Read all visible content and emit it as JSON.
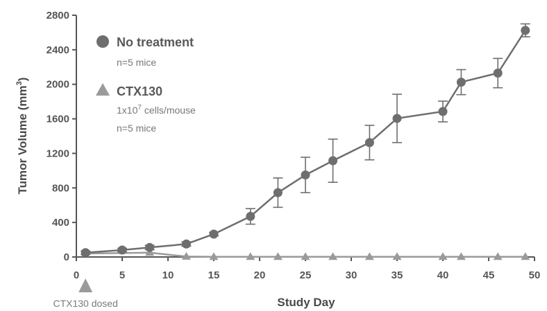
{
  "chart_data": {
    "type": "line",
    "xlabel": "Study Day",
    "ylabel": "Tumor Volume (mm",
    "ylabel_sup": "3",
    "ylabel_close": ")",
    "xlim": [
      0,
      50
    ],
    "ylim": [
      0,
      2800
    ],
    "xticks": [
      "0",
      "5",
      "10",
      "15",
      "20",
      "25",
      "30",
      "35",
      "40",
      "45",
      "50"
    ],
    "yticks": [
      "0",
      "400",
      "800",
      "1200",
      "1600",
      "2000",
      "2400",
      "2800"
    ],
    "grid": false,
    "legend_position": "top-left",
    "series": [
      {
        "name": "No treatment",
        "subtitle_lines": [
          "n=5 mice"
        ],
        "marker": "circle",
        "color": "#6e6e6e",
        "points": [
          {
            "x": 1,
            "y": 50,
            "err": 20
          },
          {
            "x": 5,
            "y": 80,
            "err": 20
          },
          {
            "x": 8,
            "y": 110,
            "err": 25
          },
          {
            "x": 12,
            "y": 150,
            "err": 25
          },
          {
            "x": 15,
            "y": 265,
            "err": 20
          },
          {
            "x": 19,
            "y": 470,
            "err": 90
          },
          {
            "x": 22,
            "y": 745,
            "err": 170
          },
          {
            "x": 25,
            "y": 950,
            "err": 205
          },
          {
            "x": 28,
            "y": 1115,
            "err": 250
          },
          {
            "x": 32,
            "y": 1325,
            "err": 200
          },
          {
            "x": 35,
            "y": 1605,
            "err": 280
          },
          {
            "x": 40,
            "y": 1685,
            "err": 120
          },
          {
            "x": 42,
            "y": 2025,
            "err": 145
          },
          {
            "x": 46,
            "y": 2130,
            "err": 170
          },
          {
            "x": 49,
            "y": 2625,
            "err": 75
          }
        ]
      },
      {
        "name": "CTX130",
        "subtitle_lines": [
          "1x10",
          "cells/mouse",
          "n=5 mice"
        ],
        "subtitle_sup": "7",
        "marker": "triangle",
        "color": "#9a9a9a",
        "points": [
          {
            "x": 1,
            "y": 40
          },
          {
            "x": 8,
            "y": 50
          },
          {
            "x": 12,
            "y": 5
          },
          {
            "x": 15,
            "y": 2
          },
          {
            "x": 19,
            "y": 2
          },
          {
            "x": 22,
            "y": 2
          },
          {
            "x": 25,
            "y": 2
          },
          {
            "x": 28,
            "y": 2
          },
          {
            "x": 32,
            "y": 2
          },
          {
            "x": 35,
            "y": 2
          },
          {
            "x": 40,
            "y": 2
          },
          {
            "x": 42,
            "y": 2
          },
          {
            "x": 46,
            "y": 2
          },
          {
            "x": 49,
            "y": 2
          }
        ]
      }
    ],
    "annotation": {
      "text": "CTX130 dosed",
      "x": 1
    }
  }
}
